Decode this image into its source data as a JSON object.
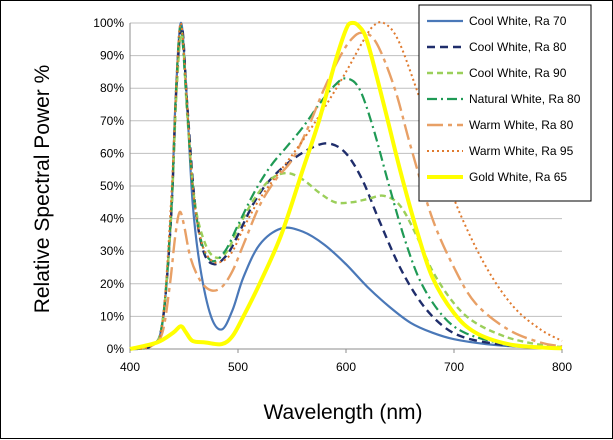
{
  "chart_data": {
    "type": "line",
    "title": "",
    "xlabel": "Wavelength (nm)",
    "ylabel": "Relative Spectral Power %",
    "xlim": [
      400,
      800
    ],
    "ylim": [
      0,
      100
    ],
    "x_ticks": [
      "400",
      "500",
      "600",
      "700",
      "800"
    ],
    "y_ticks": [
      "0%",
      "10%",
      "20%",
      "30%",
      "40%",
      "50%",
      "60%",
      "70%",
      "80%",
      "90%",
      "100%"
    ],
    "grid": "horizontal",
    "legend_position": "top-right",
    "series": [
      {
        "name": "Cool White, Ra 70",
        "color": "#4a78b8",
        "dash": "solid",
        "width": 2.2,
        "points": [
          [
            400,
            0
          ],
          [
            420,
            1
          ],
          [
            430,
            8
          ],
          [
            438,
            40
          ],
          [
            442,
            75
          ],
          [
            447,
            100
          ],
          [
            452,
            80
          ],
          [
            458,
            45
          ],
          [
            465,
            25
          ],
          [
            475,
            10
          ],
          [
            485,
            6
          ],
          [
            495,
            12
          ],
          [
            505,
            22
          ],
          [
            520,
            32
          ],
          [
            540,
            37
          ],
          [
            560,
            36
          ],
          [
            580,
            32
          ],
          [
            600,
            26
          ],
          [
            620,
            19
          ],
          [
            640,
            13
          ],
          [
            660,
            8
          ],
          [
            680,
            5
          ],
          [
            700,
            3
          ],
          [
            730,
            1.5
          ],
          [
            760,
            0.7
          ],
          [
            800,
            0.2
          ]
        ]
      },
      {
        "name": "Cool White, Ra 80",
        "color": "#1f2d6b",
        "dash": "8,5",
        "width": 2.4,
        "points": [
          [
            400,
            0
          ],
          [
            420,
            1
          ],
          [
            430,
            8
          ],
          [
            438,
            40
          ],
          [
            443,
            80
          ],
          [
            448,
            99
          ],
          [
            453,
            75
          ],
          [
            460,
            45
          ],
          [
            468,
            30
          ],
          [
            478,
            26
          ],
          [
            490,
            29
          ],
          [
            500,
            35
          ],
          [
            515,
            45
          ],
          [
            530,
            52
          ],
          [
            550,
            58
          ],
          [
            570,
            62
          ],
          [
            585,
            63
          ],
          [
            600,
            60
          ],
          [
            615,
            52
          ],
          [
            630,
            40
          ],
          [
            650,
            25
          ],
          [
            670,
            14
          ],
          [
            690,
            7
          ],
          [
            710,
            3.5
          ],
          [
            740,
            1.5
          ],
          [
            770,
            0.6
          ],
          [
            800,
            0.2
          ]
        ]
      },
      {
        "name": "Cool White, Ra 90",
        "color": "#9bcf5a",
        "dash": "6,4",
        "width": 2.4,
        "points": [
          [
            400,
            0
          ],
          [
            420,
            1
          ],
          [
            430,
            8
          ],
          [
            438,
            40
          ],
          [
            443,
            78
          ],
          [
            448,
            97
          ],
          [
            453,
            72
          ],
          [
            460,
            45
          ],
          [
            470,
            32
          ],
          [
            480,
            28
          ],
          [
            490,
            30
          ],
          [
            500,
            37
          ],
          [
            515,
            46
          ],
          [
            530,
            52
          ],
          [
            545,
            54
          ],
          [
            560,
            52
          ],
          [
            575,
            48
          ],
          [
            590,
            45
          ],
          [
            605,
            45
          ],
          [
            620,
            46
          ],
          [
            635,
            47
          ],
          [
            650,
            44
          ],
          [
            665,
            35
          ],
          [
            680,
            24
          ],
          [
            700,
            14
          ],
          [
            720,
            8
          ],
          [
            750,
            3.5
          ],
          [
            780,
            1.3
          ],
          [
            800,
            0.6
          ]
        ]
      },
      {
        "name": "Natural White, Ra 80",
        "color": "#1f9a55",
        "dash": "10,4,2,4",
        "width": 2.2,
        "points": [
          [
            400,
            0
          ],
          [
            420,
            1
          ],
          [
            430,
            8
          ],
          [
            438,
            42
          ],
          [
            443,
            82
          ],
          [
            447,
            99
          ],
          [
            452,
            78
          ],
          [
            458,
            50
          ],
          [
            466,
            33
          ],
          [
            476,
            27
          ],
          [
            488,
            30
          ],
          [
            500,
            38
          ],
          [
            515,
            48
          ],
          [
            530,
            56
          ],
          [
            545,
            62
          ],
          [
            560,
            68
          ],
          [
            575,
            75
          ],
          [
            590,
            81
          ],
          [
            600,
            83
          ],
          [
            612,
            80
          ],
          [
            625,
            68
          ],
          [
            640,
            50
          ],
          [
            655,
            33
          ],
          [
            670,
            20
          ],
          [
            690,
            10
          ],
          [
            710,
            5
          ],
          [
            740,
            2
          ],
          [
            770,
            0.8
          ],
          [
            800,
            0.3
          ]
        ]
      },
      {
        "name": "Warm White, Ra 80",
        "color": "#e8a066",
        "dash": "16,5,4,5",
        "width": 2.4,
        "points": [
          [
            400,
            0
          ],
          [
            420,
            1
          ],
          [
            430,
            5
          ],
          [
            437,
            20
          ],
          [
            442,
            35
          ],
          [
            446,
            42
          ],
          [
            450,
            38
          ],
          [
            456,
            28
          ],
          [
            465,
            21
          ],
          [
            475,
            18
          ],
          [
            485,
            19
          ],
          [
            495,
            24
          ],
          [
            505,
            32
          ],
          [
            520,
            44
          ],
          [
            535,
            52
          ],
          [
            550,
            58
          ],
          [
            565,
            68
          ],
          [
            580,
            80
          ],
          [
            595,
            90
          ],
          [
            605,
            95
          ],
          [
            615,
            97
          ],
          [
            628,
            94
          ],
          [
            645,
            80
          ],
          [
            660,
            62
          ],
          [
            680,
            40
          ],
          [
            700,
            25
          ],
          [
            720,
            14
          ],
          [
            750,
            6
          ],
          [
            780,
            2
          ],
          [
            800,
            0.8
          ]
        ]
      },
      {
        "name": "Warm White, Ra 95",
        "color": "#e07a2e",
        "dash": "2,3",
        "width": 2.0,
        "points": [
          [
            400,
            0
          ],
          [
            420,
            1
          ],
          [
            430,
            8
          ],
          [
            438,
            45
          ],
          [
            443,
            82
          ],
          [
            447,
            100
          ],
          [
            452,
            80
          ],
          [
            458,
            50
          ],
          [
            466,
            33
          ],
          [
            476,
            27
          ],
          [
            486,
            27
          ],
          [
            495,
            30
          ],
          [
            505,
            37
          ],
          [
            520,
            46
          ],
          [
            540,
            55
          ],
          [
            560,
            64
          ],
          [
            580,
            74
          ],
          [
            600,
            85
          ],
          [
            615,
            94
          ],
          [
            625,
            99
          ],
          [
            635,
            100
          ],
          [
            648,
            95
          ],
          [
            665,
            80
          ],
          [
            685,
            60
          ],
          [
            705,
            42
          ],
          [
            730,
            25
          ],
          [
            755,
            13
          ],
          [
            780,
            6
          ],
          [
            800,
            2.5
          ]
        ]
      },
      {
        "name": "Gold White, Ra 65",
        "color": "#ffff00",
        "dash": "solid",
        "width": 4,
        "points": [
          [
            400,
            0
          ],
          [
            425,
            2
          ],
          [
            440,
            5
          ],
          [
            447,
            7
          ],
          [
            452,
            5
          ],
          [
            458,
            2.5
          ],
          [
            470,
            2
          ],
          [
            485,
            1.5
          ],
          [
            495,
            4
          ],
          [
            505,
            10
          ],
          [
            520,
            20
          ],
          [
            540,
            35
          ],
          [
            560,
            55
          ],
          [
            575,
            70
          ],
          [
            590,
            88
          ],
          [
            600,
            98
          ],
          [
            605,
            100
          ],
          [
            612,
            99
          ],
          [
            620,
            94
          ],
          [
            635,
            75
          ],
          [
            650,
            55
          ],
          [
            665,
            37
          ],
          [
            680,
            22
          ],
          [
            700,
            11
          ],
          [
            720,
            5
          ],
          [
            750,
            1.5
          ],
          [
            780,
            0.5
          ],
          [
            800,
            0.2
          ]
        ]
      }
    ]
  }
}
